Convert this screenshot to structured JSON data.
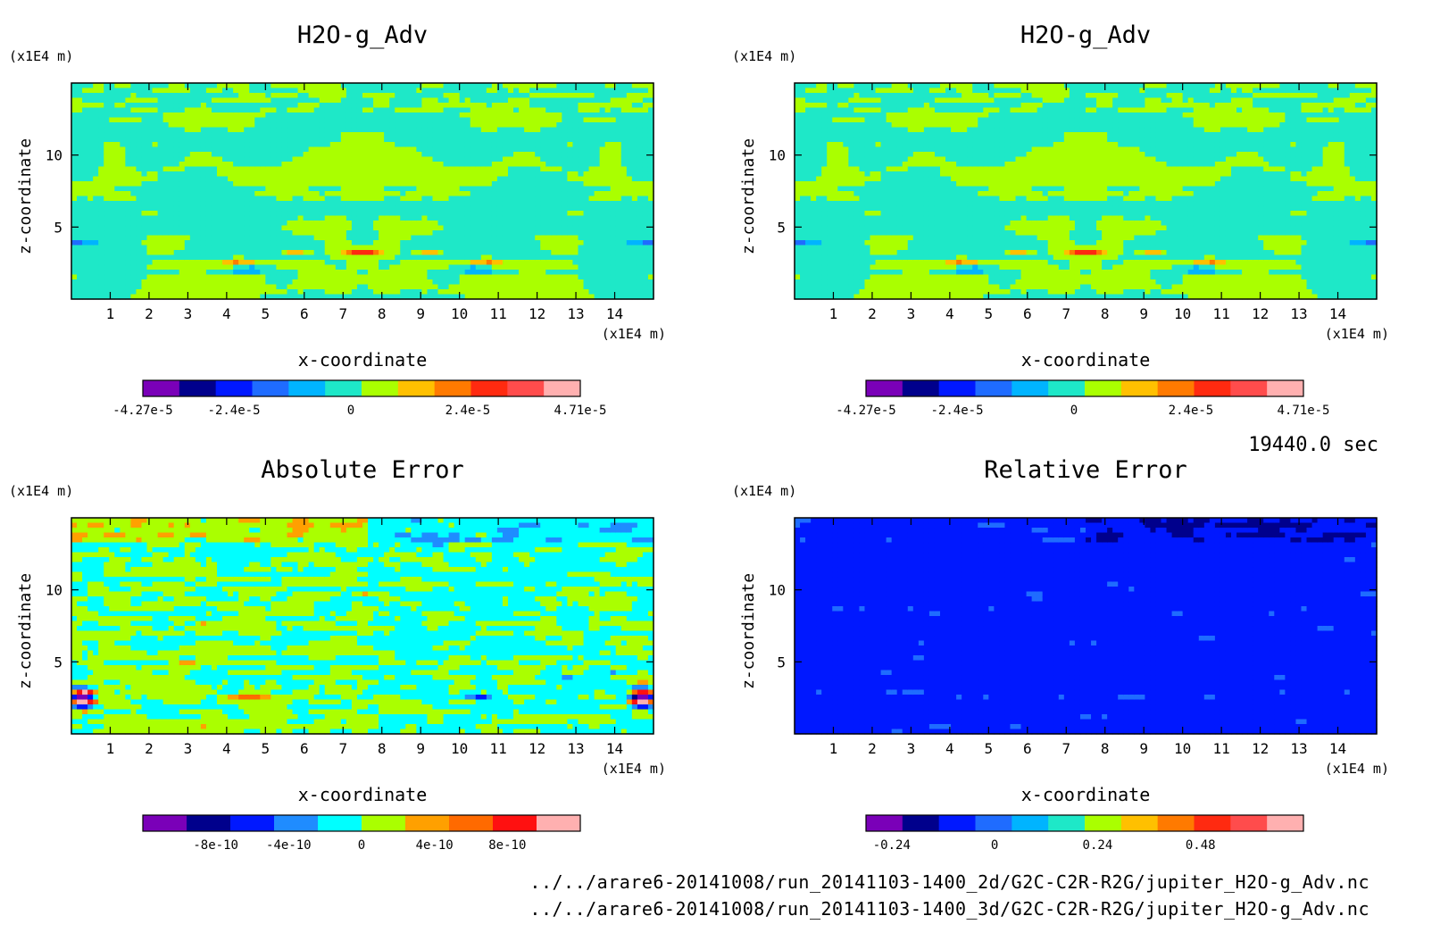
{
  "time_label": "19440.0 sec",
  "files": [
    "../../arare6-20141008/run_20141103-1400_2d/G2C-C2R-R2G/jupiter_H2O-g_Adv.nc",
    "../../arare6-20141008/run_20141103-1400_3d/G2C-C2R-R2G/jupiter_H2O-g_Adv.nc"
  ],
  "chart_data": [
    {
      "type": "heatmap",
      "title": "H2O-g_Adv",
      "xlabel": "x-coordinate",
      "ylabel": "z-coordinate",
      "x_unit": "(x1E4 m)",
      "y_unit": "(x1E4 m)",
      "xlim": [
        0,
        15
      ],
      "ylim": [
        0,
        15
      ],
      "x_ticks": [
        1,
        2,
        3,
        4,
        5,
        6,
        7,
        8,
        9,
        10,
        11,
        12,
        13,
        14
      ],
      "y_ticks": [
        5,
        10
      ],
      "field": "h2o",
      "colorbar": {
        "range": [
          -4.27e-05,
          4.71e-05
        ],
        "colors": [
          "#7a00b8",
          "#00008c",
          "#0018ff",
          "#1f6cff",
          "#00b4ff",
          "#1ee8c8",
          "#aaff00",
          "#ffc000",
          "#ff7a00",
          "#ff2a10",
          "#ff4c4c",
          "#ffb0b0"
        ],
        "tick_values": [
          -4.27e-05,
          -2.4e-05,
          0,
          2.4e-05,
          4.71e-05
        ],
        "tick_labels": [
          "-4.27e-5",
          "-2.4e-5",
          "0",
          "2.4e-5",
          "4.71e-5"
        ]
      }
    },
    {
      "type": "heatmap",
      "title": "H2O-g_Adv",
      "xlabel": "x-coordinate",
      "ylabel": "z-coordinate",
      "x_unit": "(x1E4 m)",
      "y_unit": "(x1E4 m)",
      "xlim": [
        0,
        15
      ],
      "ylim": [
        0,
        15
      ],
      "x_ticks": [
        1,
        2,
        3,
        4,
        5,
        6,
        7,
        8,
        9,
        10,
        11,
        12,
        13,
        14
      ],
      "y_ticks": [
        5,
        10
      ],
      "field": "h2o",
      "colorbar": {
        "range": [
          -4.27e-05,
          4.71e-05
        ],
        "colors": [
          "#7a00b8",
          "#00008c",
          "#0018ff",
          "#1f6cff",
          "#00b4ff",
          "#1ee8c8",
          "#aaff00",
          "#ffc000",
          "#ff7a00",
          "#ff2a10",
          "#ff4c4c",
          "#ffb0b0"
        ],
        "tick_values": [
          -4.27e-05,
          -2.4e-05,
          0,
          2.4e-05,
          4.71e-05
        ],
        "tick_labels": [
          "-4.27e-5",
          "-2.4e-5",
          "0",
          "2.4e-5",
          "4.71e-5"
        ]
      }
    },
    {
      "type": "heatmap",
      "title": "Absolute Error",
      "xlabel": "x-coordinate",
      "ylabel": "z-coordinate",
      "x_unit": "(x1E4 m)",
      "y_unit": "(x1E4 m)",
      "xlim": [
        0,
        15
      ],
      "ylim": [
        0,
        15
      ],
      "x_ticks": [
        1,
        2,
        3,
        4,
        5,
        6,
        7,
        8,
        9,
        10,
        11,
        12,
        13,
        14
      ],
      "y_ticks": [
        5,
        10
      ],
      "field": "abs",
      "colorbar": {
        "range": [
          -1.2e-09,
          1.2e-09
        ],
        "colors": [
          "#7a00b8",
          "#00008c",
          "#0018ff",
          "#1f8cff",
          "#00ffff",
          "#aaff00",
          "#ffa000",
          "#ff6a00",
          "#ff1010",
          "#ffb0b0"
        ],
        "tick_values": [
          -8e-10,
          -4e-10,
          0,
          4e-10,
          8e-10
        ],
        "tick_labels": [
          "-8e-10",
          "-4e-10",
          "0",
          "4e-10",
          "8e-10"
        ]
      }
    },
    {
      "type": "heatmap",
      "title": "Relative Error",
      "xlabel": "x-coordinate",
      "ylabel": "z-coordinate",
      "x_unit": "(x1E4 m)",
      "y_unit": "(x1E4 m)",
      "xlim": [
        0,
        15
      ],
      "ylim": [
        0,
        15
      ],
      "x_ticks": [
        1,
        2,
        3,
        4,
        5,
        6,
        7,
        8,
        9,
        10,
        11,
        12,
        13,
        14
      ],
      "y_ticks": [
        5,
        10
      ],
      "field": "rel",
      "colorbar": {
        "range": [
          -0.3,
          0.72
        ],
        "colors": [
          "#7a00b8",
          "#00008c",
          "#0018ff",
          "#1f6cff",
          "#00b4ff",
          "#1ee8c8",
          "#aaff00",
          "#ffc000",
          "#ff7a00",
          "#ff2a10",
          "#ff4c4c",
          "#ffb0b0"
        ],
        "tick_values": [
          -0.24,
          0,
          0.24,
          0.48
        ],
        "tick_labels": [
          "-0.24",
          "0",
          "0.24",
          "0.48"
        ]
      }
    }
  ]
}
